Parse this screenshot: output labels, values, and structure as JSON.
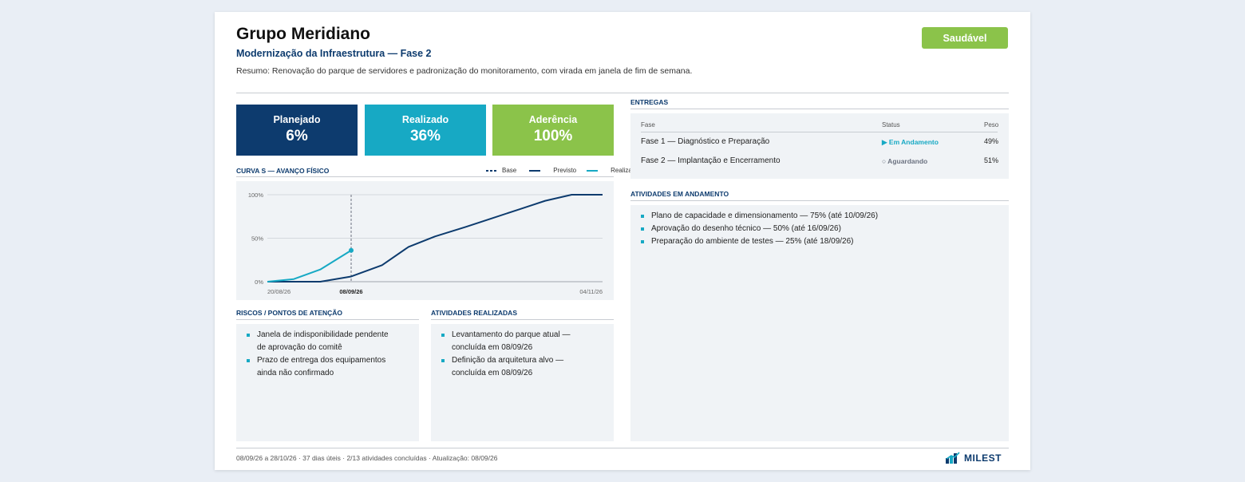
{
  "header": {
    "title": "Grupo Meridiano",
    "subtitle": "Modernização da Infraestrutura — Fase 2",
    "summary": "Resumo: Renovação do parque de servidores e padronização do monitoramento, com virada em janela de fim de semana.",
    "status_badge": "Saudável"
  },
  "kpis": [
    {
      "label": "Planejado",
      "value": "6%",
      "color": "#0d3b6e"
    },
    {
      "label": "Realizado",
      "value": "36%",
      "color": "#17a9c4"
    },
    {
      "label": "Aderência",
      "value": "100%",
      "color": "#8bc34a"
    }
  ],
  "curve_section": {
    "title": "CURVA S — AVANÇO FÍSICO",
    "legend": {
      "base": "Base",
      "planned": "Previsto",
      "actual": "Realizado"
    }
  },
  "chart_data": {
    "type": "line",
    "x_ticks": [
      "20/08/26",
      "08/09/26",
      "04/11/26"
    ],
    "y_ticks": [
      "0%",
      "50%",
      "100%"
    ],
    "ylim": [
      0,
      100
    ],
    "x_range": [
      "20/08/26",
      "04/11/26"
    ],
    "status_date": "08/09/26",
    "grid": true,
    "legend_position": "top-right",
    "series": [
      {
        "name": "Previsto",
        "color": "#0d3b6e",
        "points": [
          [
            "20/08/26",
            0
          ],
          [
            "26/08/26",
            0
          ],
          [
            "01/09/26",
            0
          ],
          [
            "08/09/26",
            6
          ],
          [
            "15/09/26",
            19
          ],
          [
            "21/09/26",
            40
          ],
          [
            "27/09/26",
            52
          ],
          [
            "04/10/26",
            63
          ],
          [
            "10/10/26",
            73
          ],
          [
            "16/10/26",
            83
          ],
          [
            "22/10/26",
            93
          ],
          [
            "28/10/26",
            100
          ],
          [
            "04/11/26",
            100
          ]
        ]
      },
      {
        "name": "Realizado",
        "color": "#17a9c4",
        "points": [
          [
            "20/08/26",
            0
          ],
          [
            "26/08/26",
            3
          ],
          [
            "01/09/26",
            14
          ],
          [
            "08/09/26",
            36
          ]
        ]
      }
    ]
  },
  "deliveries": {
    "title": "ENTREGAS",
    "headers": {
      "phase": "Fase",
      "status": "Status",
      "weight": "Peso"
    },
    "rows": [
      {
        "phase": "Fase 1 — Diagnóstico e Preparação",
        "status": "▶ Em Andamento",
        "weight": "49%",
        "status_color": "#17a9c4"
      },
      {
        "phase": "Fase 2 — Implantação e Encerramento",
        "status": "○ Aguardando",
        "weight": "51%",
        "status_color": "#6b7280"
      }
    ]
  },
  "ongoing": {
    "title": "ATIVIDADES EM ANDAMENTO",
    "items": [
      "Plano de capacidade e dimensionamento — 75% (até 10/09/26)",
      "Aprovação do desenho técnico — 50% (até 16/09/26)",
      "Preparação do ambiente de testes — 25% (até 18/09/26)"
    ]
  },
  "risks": {
    "title": "RISCOS / PONTOS DE ATENÇÃO",
    "items": [
      {
        "line1": "Janela de indisponibilidade pendente",
        "line2": "de aprovação do comitê"
      },
      {
        "line1": "Prazo de entrega dos equipamentos",
        "line2": "ainda não confirmado"
      }
    ]
  },
  "done": {
    "title": "ATIVIDADES REALIZADAS",
    "items": [
      {
        "line1": "Levantamento do parque atual —",
        "line2": "concluída em 08/09/26"
      },
      {
        "line1": "Definição da arquitetura alvo —",
        "line2": "concluída em 08/09/26"
      }
    ]
  },
  "footer": {
    "text": "08/09/26 a 28/10/26 · 37 dias úteis · 2/13 atividades concluídas · Atualização: 08/09/26",
    "brand": "MILEST"
  }
}
